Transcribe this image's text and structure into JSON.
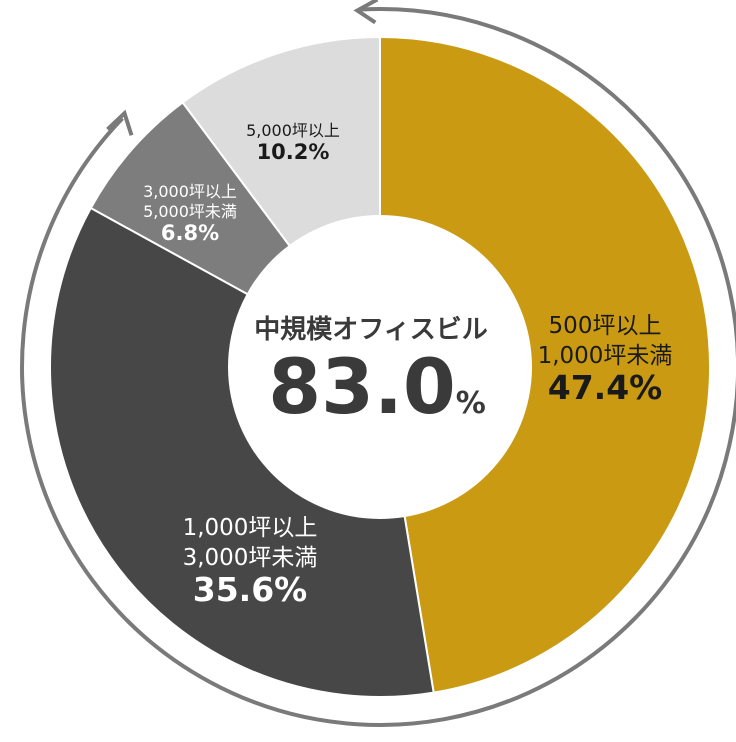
{
  "chart_data": {
    "type": "pie",
    "variant": "donut",
    "categories": [
      "500坪以上 1,000坪未満",
      "1,000坪以上 3,000坪未満",
      "3,000坪以上 5,000坪未満",
      "5,000坪以上"
    ],
    "slices": [
      {
        "label_lines": [
          "500坪以上",
          "1,000坪未満"
        ],
        "value": 47.4,
        "value_label": "47.4%",
        "color": "#c99a12",
        "text_color": "#1a1a1a"
      },
      {
        "label_lines": [
          "1,000坪以上",
          "3,000坪未満"
        ],
        "value": 35.6,
        "value_label": "35.6%",
        "color": "#474747",
        "text_color": "#ffffff"
      },
      {
        "label_lines": [
          "3,000坪以上",
          "5,000坪未満"
        ],
        "value": 6.8,
        "value_label": "6.8%",
        "color": "#7d7d7d",
        "text_color": "#ffffff"
      },
      {
        "label_lines": [
          "5,000坪以上"
        ],
        "value": 10.2,
        "value_label": "10.2%",
        "color": "#dcdcdc",
        "text_color": "#1a1a1a"
      }
    ],
    "center": {
      "title": "中規模オフィスビル",
      "value": "83.0",
      "unit": "%"
    },
    "arrow_color": "#7a7a7a"
  }
}
